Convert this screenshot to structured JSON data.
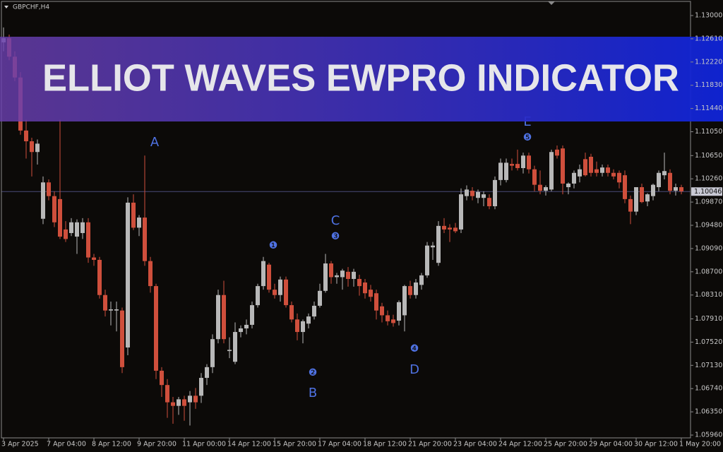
{
  "chart_data": {
    "type": "candlestick",
    "title": "GBPCHF,H4",
    "banner": "ELLIOT WAVES EWPRO INDICATOR",
    "up_color": "#b8b8b8",
    "down_color": "#cf4f3c",
    "annotation_color": "#4f72e3",
    "categories": [
      "3 Apr 2025",
      null,
      null,
      null,
      null,
      null,
      null,
      null,
      "7 Apr 04:00",
      null,
      null,
      null,
      null,
      null,
      null,
      null,
      "8 Apr 12:00",
      null,
      null,
      null,
      null,
      null,
      null,
      null,
      "9 Apr 20:00",
      null,
      null,
      null,
      null,
      null,
      null,
      null,
      "11 Apr 00:00",
      null,
      null,
      null,
      null,
      null,
      null,
      null,
      "14 Apr 12:00",
      null,
      null,
      null,
      null,
      null,
      null,
      null,
      "15 Apr 20:00",
      null,
      null,
      null,
      null,
      null,
      null,
      null,
      "17 Apr 04:00",
      null,
      null,
      null,
      null,
      null,
      null,
      null,
      "18 Apr 12:00",
      null,
      null,
      null,
      null,
      null,
      null,
      null,
      "21 Apr 20:00",
      null,
      null,
      null,
      null,
      null,
      null,
      null,
      "23 Apr 04:00",
      null,
      null,
      null,
      null,
      null,
      null,
      null,
      "24 Apr 12:00",
      null,
      null,
      null,
      null,
      null,
      null,
      null,
      "25 Apr 20:00",
      null,
      null,
      null,
      null,
      null,
      null,
      null,
      "29 Apr 04:00",
      null,
      null,
      null,
      null,
      null,
      null,
      null,
      "30 Apr 12:00",
      null,
      null,
      null,
      null,
      null,
      null,
      null,
      "1 May 20:00"
    ],
    "open": [
      1.1255,
      1.1262,
      1.1231,
      1.1196,
      1.1107,
      1.1089,
      1.1071,
      1.0959,
      1.102,
      1.0997,
      1.0992,
      1.0941,
      1.0935,
      1.0929,
      1.0935,
      1.0953,
      1.0894,
      1.089,
      1.0831,
      1.0805,
      1.0805,
      1.0805,
      1.0743,
      1.0986,
      1.0944,
      1.0961,
      1.0888,
      1.0846,
      1.0704,
      1.068,
      1.0651,
      1.0645,
      1.0656,
      1.0651,
      1.0662,
      1.0662,
      1.0692,
      1.071,
      1.0757,
      1.0831,
      1.0737,
      1.0719,
      1.0769,
      1.0775,
      1.0781,
      1.0814,
      1.0846,
      1.0882,
      1.084,
      1.0831,
      1.0857,
      1.0814,
      1.079,
      1.0769,
      1.0783,
      1.0795,
      1.0813,
      1.0838,
      1.0884,
      1.0861,
      1.0861,
      1.087,
      1.0858,
      1.0858,
      1.0852,
      1.084,
      1.0834,
      1.0812,
      1.0797,
      1.079,
      1.0788,
      1.0797,
      1.0846,
      1.0831,
      1.0848,
      1.0864,
      1.0911,
      1.0885,
      1.0947,
      1.0944,
      1.0944,
      1.0941,
      1.0997,
      1.1006,
      1.0994,
      1.0994,
      1.0994,
      1.098,
      1.1024,
      1.1024,
      1.1051,
      1.1051,
      1.1044,
      1.1065,
      1.1042,
      1.1016,
      1.1006,
      1.1008,
      1.1075,
      1.1077,
      1.1012,
      1.1018,
      1.103,
      1.1059,
      1.1063,
      1.1042,
      1.1036,
      1.1045,
      1.1036,
      1.1036,
      1.1032,
      1.0992,
      1.0971,
      1.1012,
      1.0988,
      1.0997,
      1.1012,
      1.1032,
      1.1036,
      1.1006,
      1.1012
    ],
    "high": [
      1.128,
      1.1268,
      1.124,
      1.1205,
      1.1125,
      1.1095,
      1.1092,
      1.103,
      1.1025,
      1.1005,
      1.1125,
      1.0955,
      1.096,
      1.0958,
      1.096,
      1.096,
      1.09,
      1.0895,
      1.084,
      1.082,
      1.082,
      1.081,
      1.0995,
      1.1,
      1.0965,
      1.1065,
      1.0895,
      1.085,
      1.071,
      1.069,
      1.066,
      1.066,
      1.0662,
      1.067,
      1.0675,
      1.07,
      1.0715,
      1.0765,
      1.084,
      1.0855,
      1.076,
      1.0785,
      1.078,
      1.079,
      1.082,
      1.085,
      1.0895,
      1.0885,
      1.085,
      1.0862,
      1.0862,
      1.082,
      1.08,
      1.079,
      1.08,
      1.082,
      1.085,
      1.09,
      1.0888,
      1.0868,
      1.0875,
      1.0878,
      1.0875,
      1.0865,
      1.0858,
      1.0848,
      1.084,
      1.0818,
      1.0805,
      1.0798,
      1.0822,
      1.0848,
      1.0855,
      1.0858,
      1.0868,
      1.092,
      1.092,
      1.0955,
      1.096,
      1.095,
      1.0952,
      1.101,
      1.1015,
      1.1012,
      1.1008,
      1.1005,
      1.1,
      1.103,
      1.106,
      1.106,
      1.106,
      1.1075,
      1.107,
      1.107,
      1.1048,
      1.104,
      1.1015,
      1.1075,
      1.1082,
      1.1082,
      1.102,
      1.104,
      1.105,
      1.107,
      1.1068,
      1.1055,
      1.105,
      1.105,
      1.1042,
      1.104,
      1.104,
      1.0998,
      1.1012,
      1.1018,
      1.1002,
      1.1018,
      1.104,
      1.107,
      1.1042,
      1.1018,
      1.1016
    ],
    "low": [
      1.124,
      1.1225,
      1.119,
      1.11,
      1.106,
      1.103,
      1.105,
      1.095,
      1.099,
      1.0945,
      1.0925,
      1.092,
      1.093,
      1.09,
      1.0925,
      1.0885,
      1.088,
      1.0825,
      1.0795,
      1.078,
      1.077,
      1.07,
      1.073,
      1.094,
      1.093,
      1.088,
      1.0835,
      1.069,
      1.066,
      1.0625,
      1.0615,
      1.063,
      1.062,
      1.0612,
      1.064,
      1.065,
      1.068,
      1.07,
      1.075,
      1.075,
      1.0725,
      1.0715,
      1.076,
      1.0765,
      1.0775,
      1.081,
      1.084,
      1.0835,
      1.0825,
      1.082,
      1.081,
      1.0785,
      1.0755,
      1.075,
      1.0775,
      1.079,
      1.081,
      1.0835,
      1.085,
      1.085,
      1.084,
      1.0845,
      1.0845,
      1.083,
      1.0825,
      1.082,
      1.079,
      1.0785,
      1.078,
      1.0778,
      1.078,
      1.077,
      1.0825,
      1.0825,
      1.084,
      1.086,
      1.089,
      1.088,
      1.0935,
      1.092,
      1.0935,
      1.0935,
      1.099,
      1.099,
      1.0985,
      1.098,
      1.0975,
      1.0975,
      1.1015,
      1.102,
      1.104,
      1.104,
      1.1035,
      1.1035,
      1.1005,
      1.1,
      1.0998,
      1.1005,
      1.106,
      1.1,
      1.1,
      1.101,
      1.102,
      1.103,
      1.103,
      1.103,
      1.103,
      1.103,
      1.1025,
      1.101,
      1.0985,
      1.095,
      1.0965,
      1.0985,
      1.098,
      1.099,
      1.1005,
      1.1025,
      1.1,
      1.0998,
      1.1
    ],
    "close": [
      1.1262,
      1.1231,
      1.1196,
      1.1107,
      1.1089,
      1.1071,
      1.1085,
      1.102,
      1.0997,
      1.0953,
      1.0929,
      1.0925,
      1.0953,
      1.0953,
      1.0953,
      1.0894,
      1.089,
      1.0831,
      1.0805,
      1.0807,
      1.0807,
      1.071,
      1.0986,
      1.0944,
      1.0961,
      1.0888,
      1.0846,
      1.0704,
      1.068,
      1.0651,
      1.0645,
      1.0656,
      1.0645,
      1.0662,
      1.0651,
      1.0692,
      1.071,
      1.0757,
      1.0831,
      1.0757,
      1.0739,
      1.0769,
      1.0775,
      1.0781,
      1.0814,
      1.0846,
      1.0888,
      1.084,
      1.0831,
      1.0857,
      1.0814,
      1.079,
      1.0769,
      1.0787,
      1.0795,
      1.0813,
      1.0838,
      1.0884,
      1.0861,
      1.0864,
      1.0872,
      1.0858,
      1.087,
      1.0846,
      1.0834,
      1.0828,
      1.0805,
      1.0797,
      1.0787,
      1.0784,
      1.0819,
      1.0846,
      1.0831,
      1.0852,
      1.0864,
      1.0914,
      1.0914,
      1.0947,
      1.0941,
      1.0941,
      1.0938,
      1.1,
      1.1008,
      1.0997,
      1.1004,
      1.1,
      1.098,
      1.1024,
      1.1053,
      1.1053,
      1.1048,
      1.1044,
      1.1065,
      1.1042,
      1.1016,
      1.1006,
      1.1012,
      1.1071,
      1.1065,
      1.1018,
      1.1018,
      1.1036,
      1.1042,
      1.1032,
      1.1036,
      1.1036,
      1.1045,
      1.1036,
      1.103,
      1.102,
      1.0992,
      1.0971,
      1.1012,
      1.0987,
      1.1,
      1.1016,
      1.1036,
      1.1039,
      1.1006,
      1.1012,
      1.1005
    ],
    "ylim": [
      1.05913,
      1.13237
    ],
    "yticks": [
      {
        "value": 1.13,
        "label": "1.13000"
      },
      {
        "value": 1.1261,
        "label": "1.12610"
      },
      {
        "value": 1.1222,
        "label": "1.12220"
      },
      {
        "value": 1.1183,
        "label": "1.11830"
      },
      {
        "value": 1.1144,
        "label": "1.11440"
      },
      {
        "value": 1.1105,
        "label": "1.11050"
      },
      {
        "value": 1.1065,
        "label": "1.10650"
      },
      {
        "value": 1.1026,
        "label": "1.10260"
      },
      {
        "value": 1.0987,
        "label": "1.09870"
      },
      {
        "value": 1.0948,
        "label": "1.09480"
      },
      {
        "value": 1.0909,
        "label": "1.09090"
      },
      {
        "value": 1.087,
        "label": "1.08700"
      },
      {
        "value": 1.0831,
        "label": "1.08310"
      },
      {
        "value": 1.0791,
        "label": "1.07910"
      },
      {
        "value": 1.0752,
        "label": "1.07520"
      },
      {
        "value": 1.0713,
        "label": "1.07130"
      },
      {
        "value": 1.0674,
        "label": "1.06740"
      },
      {
        "value": 1.0635,
        "label": "1.06350"
      },
      {
        "value": 1.0596,
        "label": "1.05960"
      }
    ],
    "current_price": 1.10046,
    "annotations": [
      "A",
      "❶",
      "❷",
      "B",
      "C",
      "❸",
      "❹",
      "D",
      "E",
      "❺"
    ],
    "grid": false
  }
}
